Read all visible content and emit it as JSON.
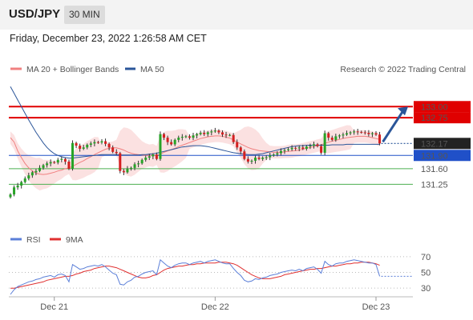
{
  "header": {
    "symbol": "USD/JPY",
    "interval": "30 MIN"
  },
  "datetime": "Friday, December 23, 2022 1:26:58 AM CET",
  "legend": {
    "ma_bb": "MA 20 + Bollinger Bands",
    "ma50": "MA 50",
    "credit": "Research © 2022 Trading Central"
  },
  "rsi_legend": {
    "rsi": "RSI",
    "ma9": "9MA"
  },
  "colors": {
    "resistance": "#e00000",
    "pivot": "#2050c8",
    "support": "#4caf50",
    "bull": "#27a327",
    "bear": "#d42020",
    "ma20": "#f08080",
    "ma50": "#2a5599",
    "band": "#fbe1e1",
    "arrow": "#2a5599",
    "rsi": "#5b7fd8",
    "rsi_ma": "#e03030"
  },
  "chart_data": [
    {
      "type": "candlestick",
      "x_labels": [
        "Dec 21",
        "Dec 22",
        "Dec 23"
      ],
      "ylim": [
        130.3,
        133.6
      ],
      "last_price": "132.17",
      "levels": [
        {
          "label": "133.00",
          "value": 133.0,
          "kind": "resistance"
        },
        {
          "label": "132.75",
          "value": 132.75,
          "kind": "resistance"
        },
        {
          "label": "131.90",
          "value": 131.9,
          "kind": "pivot"
        },
        {
          "label": "131.60",
          "value": 131.6,
          "kind": "support"
        },
        {
          "label": "131.25",
          "value": 131.25,
          "kind": "support"
        }
      ],
      "target": 133.0,
      "closes": [
        131.02,
        131.18,
        131.22,
        131.3,
        131.38,
        131.45,
        131.52,
        131.55,
        131.62,
        131.68,
        131.72,
        131.75,
        131.74,
        131.8,
        131.82,
        131.76,
        131.6,
        132.18,
        132.12,
        132.05,
        132.08,
        132.14,
        132.17,
        132.2,
        132.19,
        132.22,
        132.16,
        132.08,
        131.98,
        131.95,
        131.55,
        131.52,
        131.6,
        131.62,
        131.7,
        131.72,
        131.8,
        131.85,
        131.88,
        131.92,
        131.82,
        132.38,
        132.3,
        132.2,
        132.15,
        132.25,
        132.3,
        132.32,
        132.33,
        132.3,
        132.35,
        132.38,
        132.41,
        132.38,
        132.42,
        132.44,
        132.46,
        132.42,
        132.37,
        132.36,
        132.36,
        132.2,
        132.08,
        131.99,
        131.82,
        131.76,
        131.78,
        131.85,
        131.82,
        131.85,
        131.86,
        131.9,
        131.92,
        131.95,
        132.0,
        132.02,
        132.04,
        132.07,
        132.06,
        132.08,
        132.05,
        132.1,
        132.12,
        132.15,
        132.11,
        131.96,
        132.4,
        132.3,
        132.25,
        132.33,
        132.35,
        132.37,
        132.4,
        132.42,
        132.44,
        132.43,
        132.42,
        132.41,
        132.38,
        132.4,
        132.37,
        132.17
      ],
      "ma20": [
        132.3,
        132.2,
        132.0,
        131.85,
        131.72,
        131.62,
        131.55,
        131.5,
        131.48,
        131.47,
        131.48,
        131.5,
        131.52,
        131.55,
        131.57,
        131.6,
        131.62,
        131.65,
        131.7,
        131.74,
        131.78,
        131.83,
        131.87,
        131.92,
        131.96,
        132.0,
        132.04,
        132.06,
        132.07,
        132.07,
        132.05,
        132.02,
        131.98,
        131.95,
        131.93,
        131.92,
        131.91,
        131.9,
        131.9,
        131.9,
        131.9,
        131.93,
        131.97,
        132.0,
        132.03,
        132.06,
        132.1,
        132.13,
        132.16,
        132.19,
        132.22,
        132.25,
        132.28,
        132.3,
        132.32,
        132.33,
        132.34,
        132.34,
        132.33,
        132.31,
        132.29,
        132.25,
        132.2,
        132.16,
        132.12,
        132.08,
        132.05,
        132.03,
        132.01,
        132.0,
        131.99,
        131.98,
        131.97,
        131.97,
        131.97,
        131.98,
        131.99,
        132.0,
        132.01,
        132.02,
        132.04,
        132.06,
        132.08,
        132.1,
        132.12,
        132.14,
        132.17,
        132.2,
        132.22,
        132.24,
        132.26,
        132.28,
        132.3,
        132.31,
        132.32,
        132.33,
        132.33,
        132.33,
        132.32,
        132.3,
        132.28,
        132.26
      ],
      "ma50": [
        133.45,
        133.3,
        133.15,
        133.0,
        132.85,
        132.7,
        132.56,
        132.42,
        132.3,
        132.18,
        132.08,
        132.0,
        131.94,
        131.9,
        131.87,
        131.85,
        131.84,
        131.84,
        131.85,
        131.86,
        131.87,
        131.88,
        131.89,
        131.9,
        131.91,
        131.92,
        131.92,
        131.92,
        131.92,
        131.92,
        131.91,
        131.91,
        131.91,
        131.91,
        131.91,
        131.91,
        131.92,
        131.92,
        131.93,
        131.94,
        131.95,
        131.97,
        131.99,
        132.01,
        132.03,
        132.05,
        132.07,
        132.09,
        132.1,
        132.11,
        132.12,
        132.12,
        132.12,
        132.11,
        132.1,
        132.08,
        132.06,
        132.04,
        132.02,
        132.0,
        131.98,
        131.96,
        131.95,
        131.94,
        131.93,
        131.92,
        131.92,
        131.92,
        131.93,
        131.94,
        131.96,
        131.98,
        132.0,
        132.02,
        132.04,
        132.06,
        132.08,
        132.1,
        132.11,
        132.12,
        132.12,
        132.13,
        132.13,
        132.13,
        132.13,
        132.13,
        132.13,
        132.13,
        132.14,
        132.14,
        132.14,
        132.14,
        132.15,
        132.15,
        132.15,
        132.15,
        132.15,
        132.15,
        132.15,
        132.15,
        132.15,
        132.15
      ]
    },
    {
      "type": "line",
      "title": "RSI",
      "ylim": [
        20,
        80
      ],
      "y_ticks": [
        "70",
        "50",
        "30"
      ],
      "rsi": [
        22,
        28,
        32,
        34,
        36,
        38,
        39,
        41,
        42,
        44,
        45,
        46,
        44,
        47,
        48,
        46,
        38,
        60,
        57,
        54,
        55,
        57,
        58,
        59,
        58,
        60,
        57,
        53,
        49,
        47,
        35,
        34,
        38,
        40,
        44,
        45,
        48,
        50,
        51,
        52,
        47,
        66,
        62,
        58,
        56,
        59,
        61,
        62,
        62,
        60,
        62,
        63,
        64,
        62,
        64,
        65,
        66,
        64,
        62,
        61,
        61,
        55,
        50,
        46,
        40,
        38,
        39,
        42,
        41,
        43,
        44,
        46,
        47,
        48,
        50,
        51,
        52,
        53,
        52,
        54,
        52,
        55,
        56,
        57,
        54,
        49,
        64,
        60,
        58,
        61,
        62,
        62,
        64,
        65,
        66,
        65,
        64,
        63,
        62,
        62,
        60,
        45
      ],
      "ma9": [
        30,
        30,
        31,
        32,
        33,
        34,
        35,
        36,
        37,
        38,
        40,
        41,
        42,
        43,
        44,
        45,
        45,
        46,
        48,
        49,
        51,
        52,
        53,
        55,
        56,
        57,
        58,
        58,
        57,
        56,
        54,
        52,
        50,
        48,
        46,
        44,
        43,
        43,
        44,
        46,
        47,
        50,
        53,
        55,
        56,
        57,
        58,
        58,
        59,
        60,
        60,
        61,
        61,
        62,
        62,
        62,
        62,
        63,
        63,
        63,
        62,
        61,
        59,
        56,
        53,
        50,
        47,
        45,
        43,
        42,
        42,
        42,
        43,
        44,
        45,
        47,
        48,
        49,
        50,
        51,
        52,
        53,
        54,
        54,
        55,
        55,
        56,
        57,
        58,
        58,
        59,
        60,
        61,
        61,
        62,
        62,
        63,
        63,
        63,
        62,
        61,
        59
      ]
    }
  ]
}
